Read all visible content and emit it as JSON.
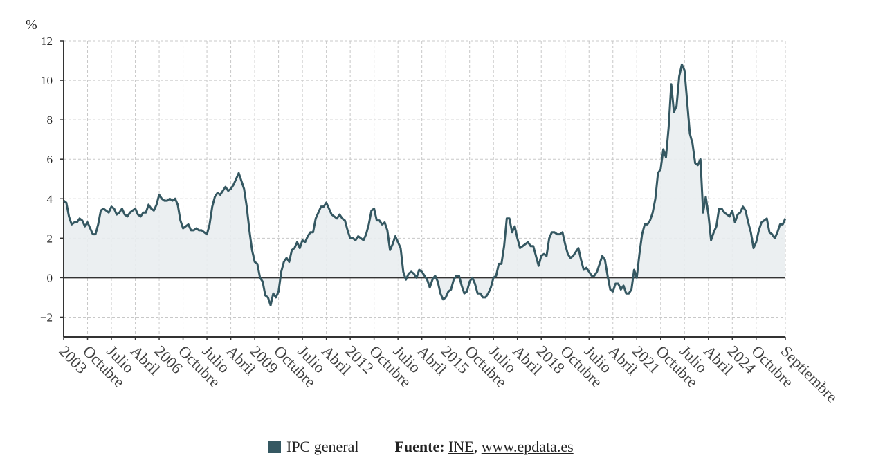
{
  "chart_data": {
    "type": "area",
    "ylabel": "%",
    "ylim": [
      -3,
      12
    ],
    "yticks": [
      -2,
      0,
      2,
      4,
      6,
      8,
      10,
      12
    ],
    "grid": true,
    "x_start": "2003-01",
    "x_ticks": [
      {
        "month": 0,
        "label": "2003"
      },
      {
        "month": 9,
        "label": "Octubre"
      },
      {
        "month": 18,
        "label": "Julio"
      },
      {
        "month": 27,
        "label": "Abril"
      },
      {
        "month": 36,
        "label": "2006"
      },
      {
        "month": 45,
        "label": "Octubre"
      },
      {
        "month": 54,
        "label": "Julio"
      },
      {
        "month": 63,
        "label": "Abril"
      },
      {
        "month": 72,
        "label": "2009"
      },
      {
        "month": 81,
        "label": "Octubre"
      },
      {
        "month": 90,
        "label": "Julio"
      },
      {
        "month": 99,
        "label": "Abril"
      },
      {
        "month": 108,
        "label": "2012"
      },
      {
        "month": 117,
        "label": "Octubre"
      },
      {
        "month": 126,
        "label": "Julio"
      },
      {
        "month": 135,
        "label": "Abril"
      },
      {
        "month": 144,
        "label": "2015"
      },
      {
        "month": 153,
        "label": "Octubre"
      },
      {
        "month": 162,
        "label": "Julio"
      },
      {
        "month": 171,
        "label": "Abril"
      },
      {
        "month": 180,
        "label": "2018"
      },
      {
        "month": 189,
        "label": "Octubre"
      },
      {
        "month": 198,
        "label": "Julio"
      },
      {
        "month": 207,
        "label": "Abril"
      },
      {
        "month": 216,
        "label": "2021"
      },
      {
        "month": 225,
        "label": "Octubre"
      },
      {
        "month": 234,
        "label": "Julio"
      },
      {
        "month": 243,
        "label": "Abril"
      },
      {
        "month": 252,
        "label": "2024"
      },
      {
        "month": 261,
        "label": "Octubre"
      },
      {
        "month": 272,
        "label": "Septiembre"
      }
    ],
    "series": [
      {
        "name": "IPC general",
        "color": "#355862",
        "values": [
          3.9,
          3.8,
          3.1,
          2.7,
          2.8,
          2.8,
          3.0,
          2.9,
          2.6,
          2.8,
          2.5,
          2.2,
          2.2,
          2.7,
          3.4,
          3.5,
          3.4,
          3.3,
          3.6,
          3.5,
          3.2,
          3.3,
          3.5,
          3.2,
          3.1,
          3.3,
          3.4,
          3.5,
          3.2,
          3.1,
          3.3,
          3.3,
          3.7,
          3.5,
          3.4,
          3.7,
          4.2,
          4.0,
          3.9,
          3.9,
          4.0,
          3.9,
          4.0,
          3.7,
          2.9,
          2.5,
          2.6,
          2.7,
          2.4,
          2.4,
          2.5,
          2.4,
          2.4,
          2.3,
          2.2,
          2.7,
          3.6,
          4.1,
          4.3,
          4.2,
          4.4,
          4.6,
          4.4,
          4.5,
          4.7,
          5.0,
          5.3,
          4.9,
          4.5,
          3.6,
          2.4,
          1.4,
          0.8,
          0.7,
          0.0,
          -0.2,
          -0.9,
          -1.0,
          -1.4,
          -0.8,
          -1.0,
          -0.7,
          0.3,
          0.8,
          1.0,
          0.8,
          1.4,
          1.5,
          1.8,
          1.5,
          1.9,
          1.8,
          2.1,
          2.3,
          2.3,
          3.0,
          3.3,
          3.6,
          3.6,
          3.8,
          3.5,
          3.2,
          3.1,
          3.0,
          3.2,
          3.0,
          2.9,
          2.4,
          2.0,
          2.0,
          1.9,
          2.1,
          2.0,
          1.9,
          2.2,
          2.7,
          3.4,
          3.5,
          2.9,
          2.9,
          2.7,
          2.8,
          2.4,
          1.4,
          1.7,
          2.1,
          1.8,
          1.5,
          0.3,
          -0.1,
          0.2,
          0.3,
          0.2,
          0.0,
          0.4,
          0.3,
          0.1,
          -0.1,
          -0.5,
          -0.1,
          0.1,
          -0.2,
          -0.8,
          -1.1,
          -1.0,
          -0.7,
          -0.6,
          -0.1,
          0.1,
          0.1,
          -0.4,
          -0.8,
          -0.7,
          -0.2,
          0.0,
          -0.3,
          -0.8,
          -0.8,
          -1.0,
          -1.0,
          -0.8,
          -0.5,
          0.0,
          0.1,
          0.7,
          0.7,
          1.6,
          3.0,
          3.0,
          2.3,
          2.6,
          2.0,
          1.5,
          1.6,
          1.7,
          1.8,
          1.6,
          1.6,
          1.1,
          0.6,
          1.1,
          1.2,
          1.1,
          2.0,
          2.3,
          2.3,
          2.2,
          2.2,
          2.3,
          1.7,
          1.2,
          1.0,
          1.1,
          1.3,
          1.5,
          0.9,
          0.4,
          0.5,
          0.3,
          0.1,
          0.1,
          0.3,
          0.7,
          1.1,
          0.9,
          0.1,
          -0.6,
          -0.7,
          -0.3,
          -0.3,
          -0.6,
          -0.4,
          -0.8,
          -0.8,
          -0.6,
          0.4,
          0.0,
          1.2,
          2.2,
          2.7,
          2.7,
          2.9,
          3.3,
          4.0,
          5.3,
          5.5,
          6.5,
          6.1,
          7.6,
          9.8,
          8.4,
          8.7,
          10.2,
          10.8,
          10.5,
          8.9,
          7.3,
          6.8,
          5.8,
          5.7,
          6.0,
          3.3,
          4.1,
          3.2,
          1.9,
          2.3,
          2.6,
          3.5,
          3.5,
          3.3,
          3.2,
          3.1,
          3.4,
          2.8,
          3.2,
          3.3,
          3.6,
          3.4,
          2.8,
          2.3,
          1.5,
          1.8,
          2.4,
          2.8,
          2.9,
          3.0,
          2.3,
          2.2,
          2.0,
          2.3,
          2.7,
          2.7,
          3.0
        ]
      }
    ]
  },
  "legend": {
    "series_label": "IPC general",
    "source_prefix": "Fuente:",
    "source_name": "INE",
    "source_separator": ",",
    "source_url": "www.epdata.es"
  }
}
